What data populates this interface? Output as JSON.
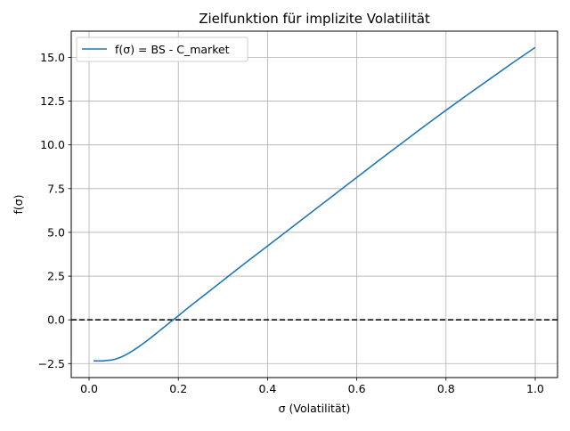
{
  "chart_data": {
    "type": "line",
    "title": "Zielfunktion für implizite Volatilität",
    "xlabel": "σ (Volatilität)",
    "ylabel": "f(σ)",
    "xlim": [
      -0.04,
      1.05
    ],
    "ylim": [
      -3.3,
      16.5
    ],
    "xticks": [
      0.0,
      0.2,
      0.4,
      0.6,
      0.8,
      1.0
    ],
    "xtick_labels": [
      "0.0",
      "0.2",
      "0.4",
      "0.6",
      "0.8",
      "1.0"
    ],
    "yticks": [
      -2.5,
      0.0,
      2.5,
      5.0,
      7.5,
      10.0,
      12.5,
      15.0
    ],
    "ytick_labels": [
      "−2.5",
      "0.0",
      "2.5",
      "5.0",
      "7.5",
      "10.0",
      "12.5",
      "15.0"
    ],
    "grid": true,
    "legend_position": "upper-left",
    "series": [
      {
        "name": "f(σ) = BS - C_market",
        "color": "#1f77b4",
        "x": [
          0.01,
          0.03,
          0.05,
          0.06,
          0.07,
          0.08,
          0.09,
          0.1,
          0.11,
          0.12,
          0.13,
          0.14,
          0.15,
          0.16,
          0.17,
          0.18,
          0.19,
          0.2,
          0.21,
          0.22,
          0.25,
          0.3,
          0.35,
          0.4,
          0.45,
          0.5,
          0.55,
          0.6,
          0.65,
          0.7,
          0.75,
          0.8,
          0.85,
          0.9,
          0.95,
          1.0
        ],
        "y": [
          -2.35,
          -2.35,
          -2.3,
          -2.24,
          -2.15,
          -2.03,
          -1.89,
          -1.73,
          -1.56,
          -1.38,
          -1.19,
          -0.99,
          -0.79,
          -0.58,
          -0.38,
          -0.17,
          0.03,
          0.23,
          0.44,
          0.65,
          1.25,
          2.25,
          3.25,
          4.22,
          5.2,
          6.18,
          7.16,
          8.14,
          9.12,
          10.08,
          11.04,
          11.98,
          12.9,
          13.8,
          14.7,
          15.57
        ]
      }
    ],
    "reference_lines": [
      {
        "type": "horizontal",
        "y": 0.0,
        "color": "#000000",
        "style": "dashed"
      }
    ]
  }
}
